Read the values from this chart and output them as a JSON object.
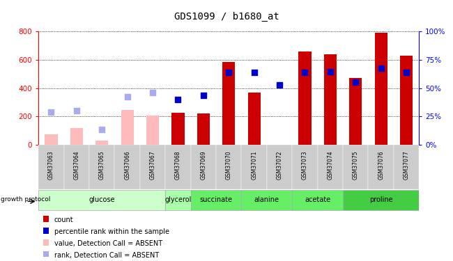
{
  "title": "GDS1099 / b1680_at",
  "samples": [
    "GSM37063",
    "GSM37064",
    "GSM37065",
    "GSM37066",
    "GSM37067",
    "GSM37068",
    "GSM37069",
    "GSM37070",
    "GSM37071",
    "GSM37072",
    "GSM37073",
    "GSM37074",
    "GSM37075",
    "GSM37076",
    "GSM37077"
  ],
  "count_values": [
    null,
    null,
    null,
    null,
    null,
    225,
    220,
    585,
    370,
    null,
    660,
    640,
    470,
    790,
    630
  ],
  "rank_values": [
    null,
    null,
    null,
    null,
    null,
    320,
    350,
    510,
    510,
    420,
    510,
    515,
    440,
    540,
    510
  ],
  "absent_value": [
    75,
    120,
    30,
    245,
    205,
    null,
    null,
    null,
    null,
    null,
    null,
    null,
    null,
    null,
    null
  ],
  "absent_rank": [
    230,
    240,
    110,
    340,
    370,
    null,
    null,
    null,
    null,
    null,
    null,
    null,
    null,
    null,
    null
  ],
  "groups_info": [
    {
      "label": "glucose",
      "indices": [
        0,
        1,
        2,
        3,
        4
      ],
      "color": "#ccffcc"
    },
    {
      "label": "glycerol",
      "indices": [
        5
      ],
      "color": "#aaffaa"
    },
    {
      "label": "succinate",
      "indices": [
        6,
        7
      ],
      "color": "#66ee66"
    },
    {
      "label": "alanine",
      "indices": [
        8,
        9
      ],
      "color": "#66ee66"
    },
    {
      "label": "acetate",
      "indices": [
        10,
        11
      ],
      "color": "#66ee66"
    },
    {
      "label": "proline",
      "indices": [
        12,
        13,
        14
      ],
      "color": "#44cc44"
    }
  ],
  "ylim_left": [
    0,
    800
  ],
  "ylim_right": [
    0,
    100
  ],
  "yticks_left": [
    0,
    200,
    400,
    600,
    800
  ],
  "yticks_right": [
    0,
    25,
    50,
    75,
    100
  ],
  "bar_color_red": "#cc0000",
  "bar_color_pink": "#ffbbbb",
  "dot_color_blue": "#0000cc",
  "dot_color_lightblue": "#aaaaee",
  "legend_items": [
    {
      "label": "count",
      "color": "#cc0000"
    },
    {
      "label": "percentile rank within the sample",
      "color": "#0000cc"
    },
    {
      "label": "value, Detection Call = ABSENT",
      "color": "#ffbbbb"
    },
    {
      "label": "rank, Detection Call = ABSENT",
      "color": "#aaaaee"
    }
  ],
  "growth_protocol_label": "growth protocol",
  "bar_width": 0.5,
  "dot_size": 35
}
